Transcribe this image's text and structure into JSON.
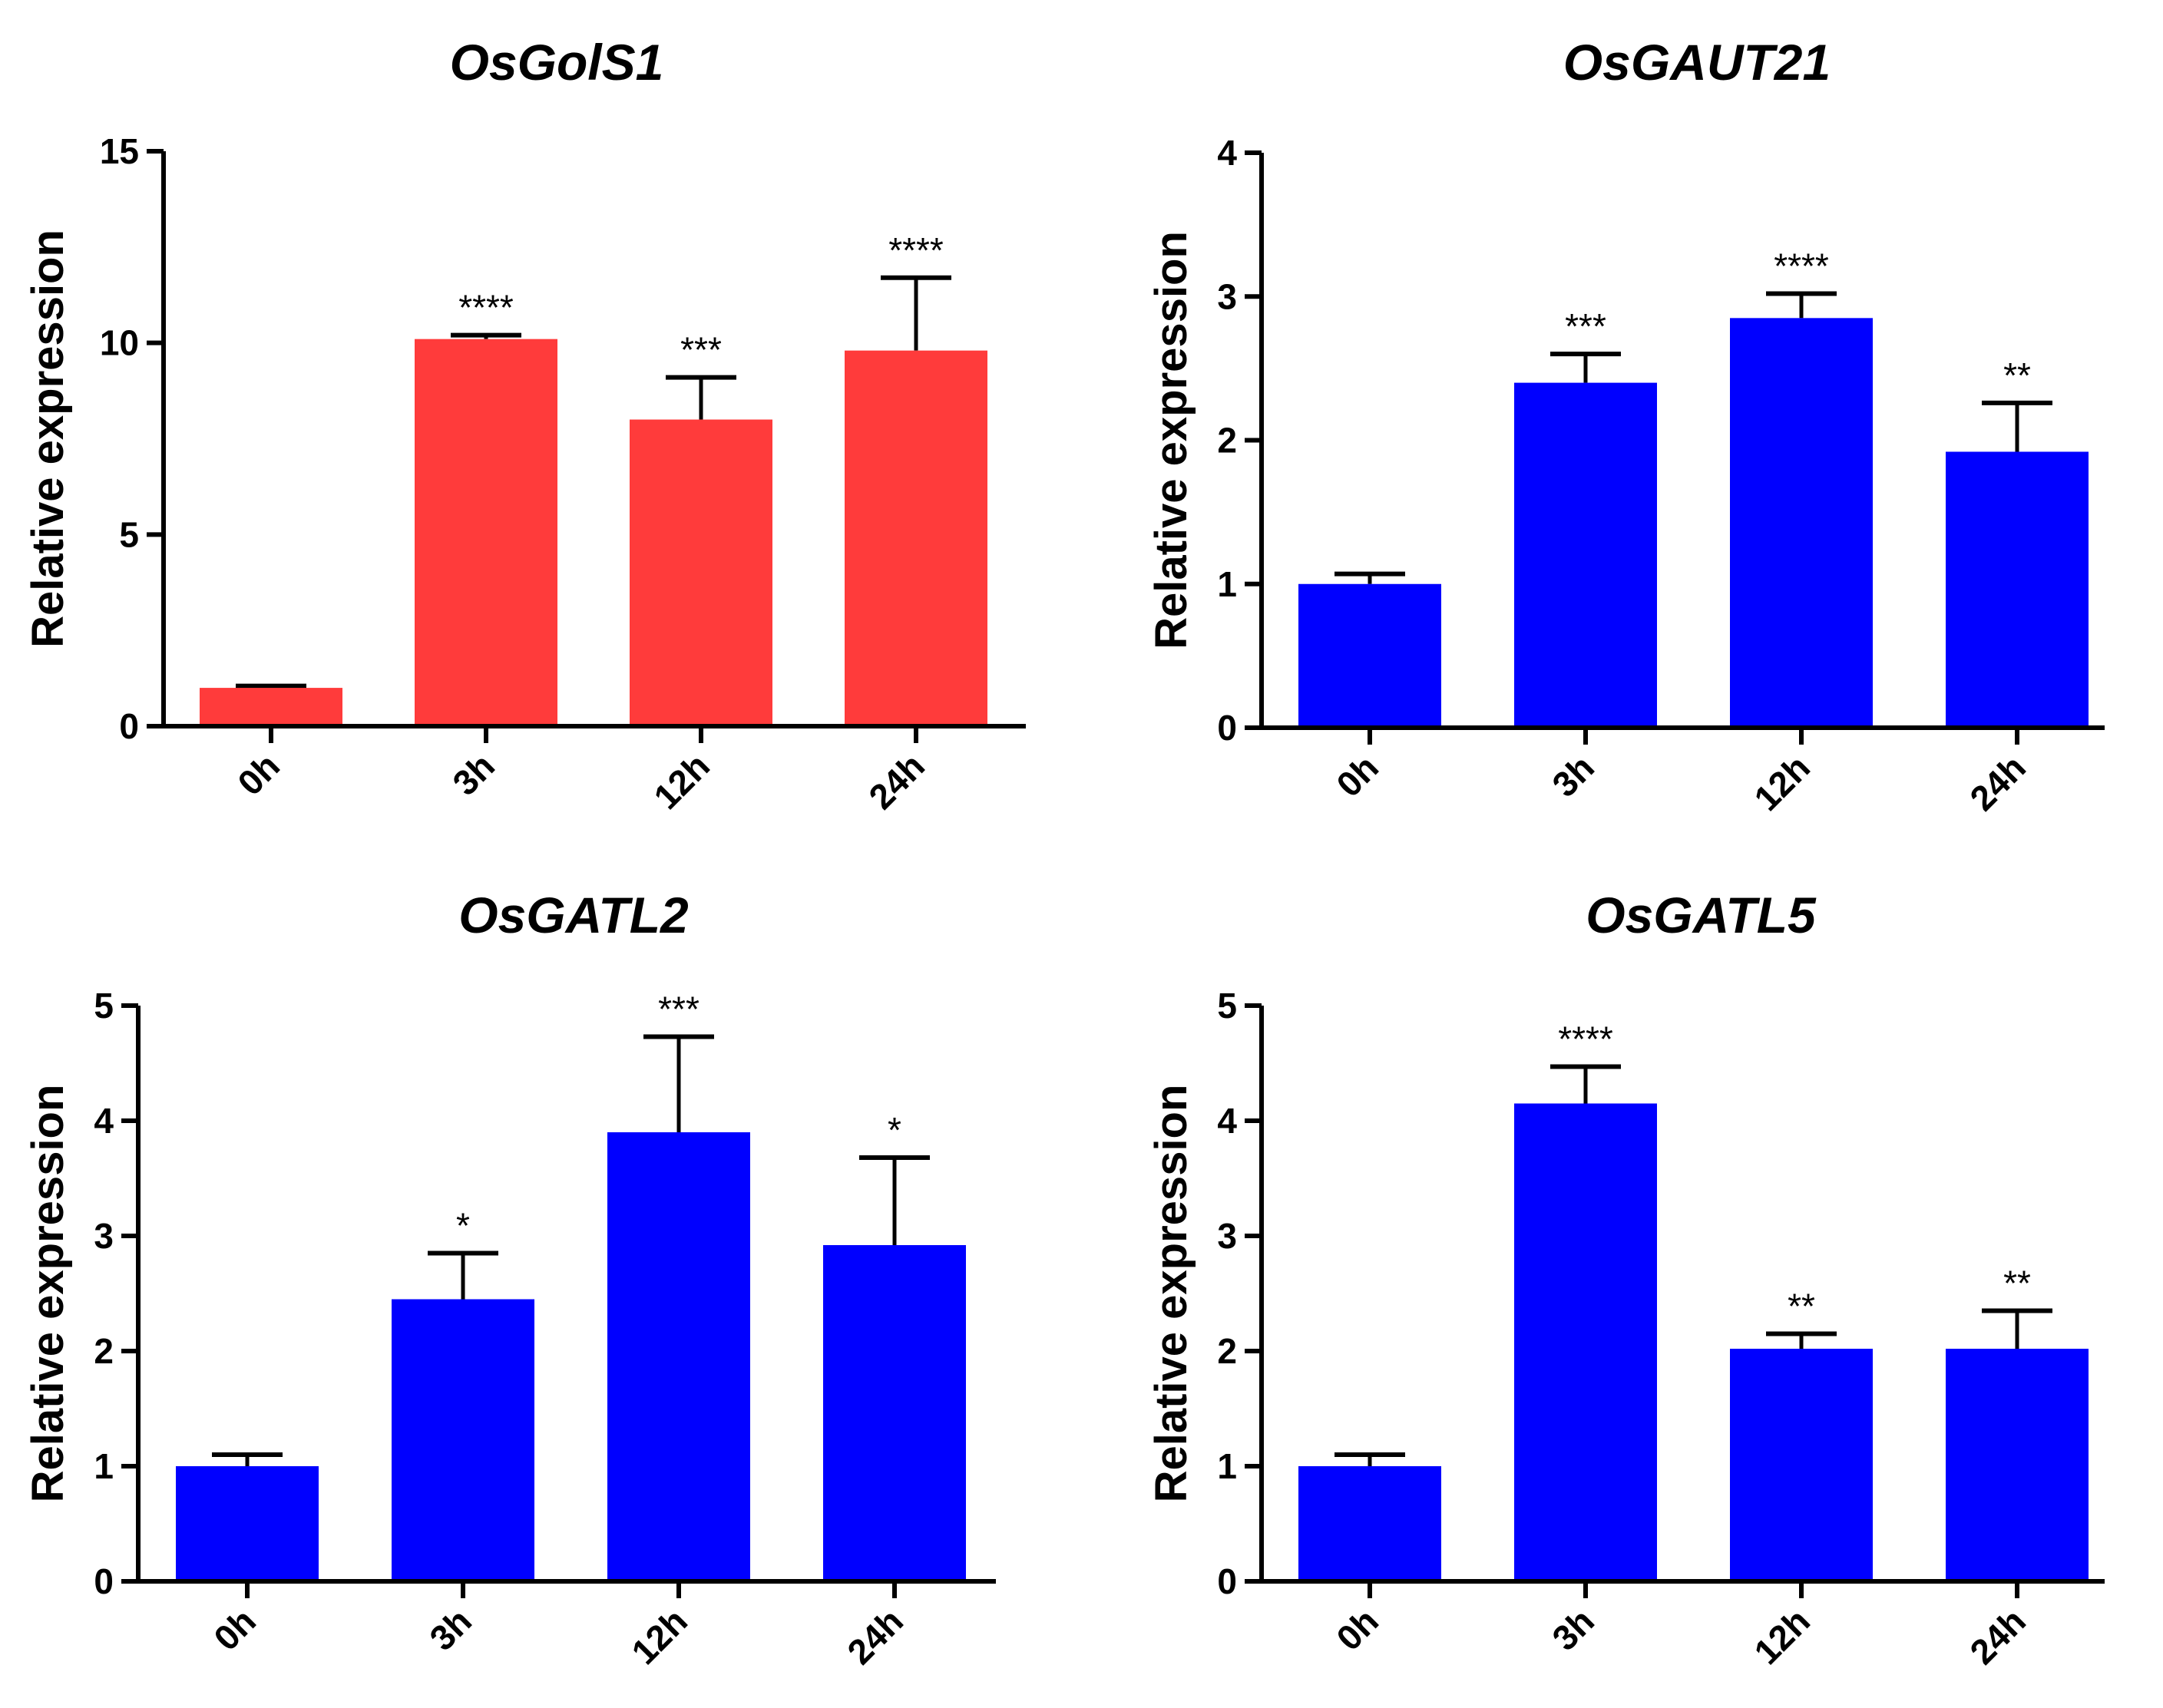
{
  "chart_data": [
    {
      "type": "bar",
      "title": "OsGolS1",
      "ylabel": "Relative expression",
      "xlabel": "",
      "categories": [
        "0h",
        "3h",
        "12h",
        "24h"
      ],
      "values": [
        1.0,
        10.1,
        8.0,
        9.8
      ],
      "errors": [
        0.05,
        0.1,
        1.1,
        1.9
      ],
      "significance": [
        "",
        "****",
        "***",
        "****"
      ],
      "ylim": [
        0,
        15
      ],
      "yticks": [
        0,
        5,
        10,
        15
      ],
      "bar_color": "#ff3b3b"
    },
    {
      "type": "bar",
      "title": "OsGAUT21",
      "ylabel": "Relative expression",
      "xlabel": "",
      "categories": [
        "0h",
        "3h",
        "12h",
        "24h"
      ],
      "values": [
        1.0,
        2.4,
        2.85,
        1.92
      ],
      "errors": [
        0.07,
        0.2,
        0.17,
        0.34
      ],
      "significance": [
        "",
        "***",
        "****",
        "**"
      ],
      "ylim": [
        0,
        4
      ],
      "yticks": [
        0,
        1,
        2,
        3,
        4
      ],
      "bar_color": "#0000ff"
    },
    {
      "type": "bar",
      "title": "OsGATL2",
      "ylabel": "Relative expression",
      "xlabel": "",
      "categories": [
        "0h",
        "3h",
        "12h",
        "24h"
      ],
      "values": [
        1.0,
        2.45,
        3.9,
        2.92
      ],
      "errors": [
        0.1,
        0.4,
        0.83,
        0.76
      ],
      "significance": [
        "",
        "*",
        "***",
        "*"
      ],
      "ylim": [
        0,
        5
      ],
      "yticks": [
        0,
        1,
        2,
        3,
        4,
        5
      ],
      "bar_color": "#0000ff"
    },
    {
      "type": "bar",
      "title": "OsGATL5",
      "ylabel": "Relative expression",
      "xlabel": "",
      "categories": [
        "0h",
        "3h",
        "12h",
        "24h"
      ],
      "values": [
        1.0,
        4.15,
        2.02,
        2.02
      ],
      "errors": [
        0.1,
        0.32,
        0.13,
        0.33
      ],
      "significance": [
        "",
        "****",
        "**",
        "**"
      ],
      "ylim": [
        0,
        5
      ],
      "yticks": [
        0,
        1,
        2,
        3,
        4,
        5
      ],
      "bar_color": "#0000ff"
    }
  ]
}
